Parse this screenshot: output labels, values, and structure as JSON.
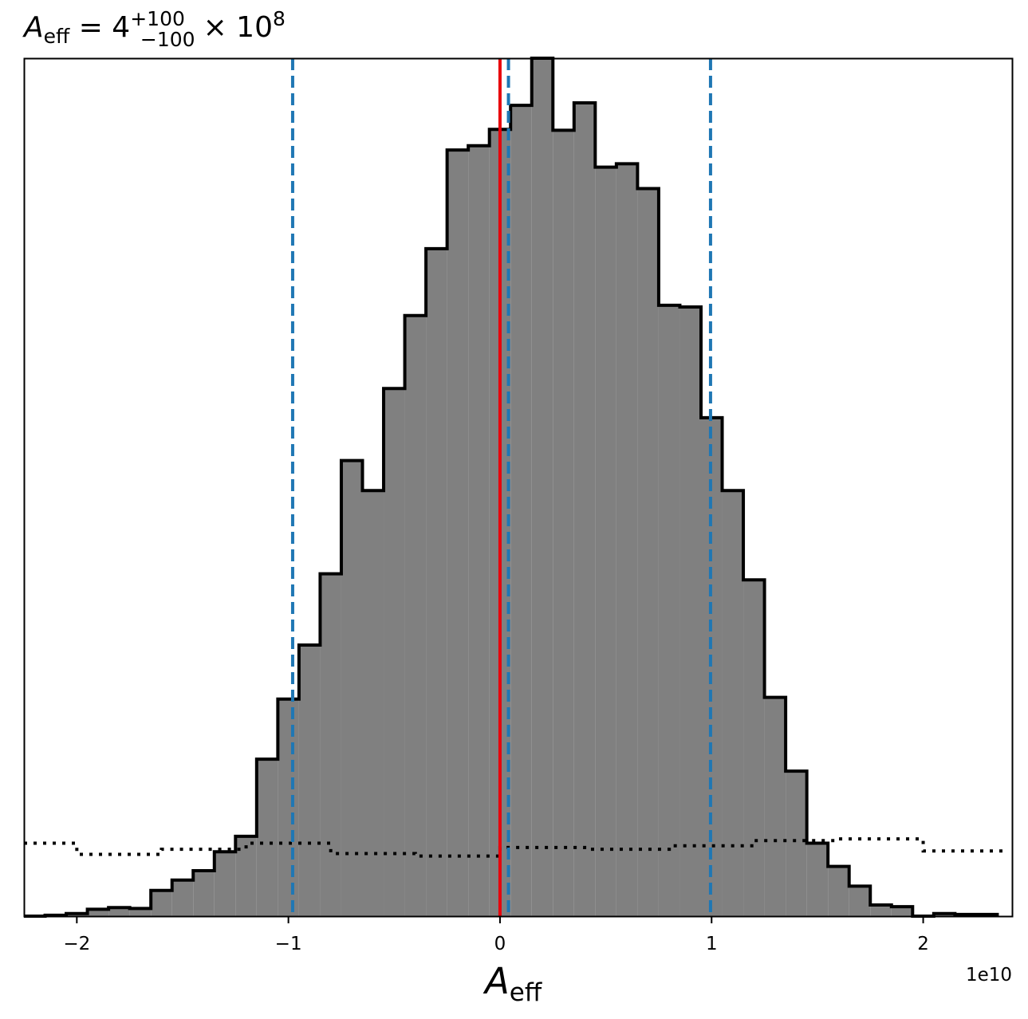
{
  "chart_data": {
    "type": "histogram",
    "title": {
      "symbol": "A",
      "subscript": "eff",
      "equals": " = 4",
      "upper": "+100",
      "lower": "−100",
      "times": "× 10",
      "exp": "8"
    },
    "xlabel": {
      "symbol": "A",
      "subscript": "eff"
    },
    "ylabel": "",
    "x_offset_label": "1e10",
    "x_scale": 10000000000.0,
    "xlim": [
      -2.25,
      2.42
    ],
    "ylim": [
      0,
      1.0
    ],
    "xticks": [
      -2,
      -1,
      0,
      1,
      2
    ],
    "xtick_labels": [
      "−2",
      "−1",
      "0",
      "1",
      "2"
    ],
    "yticks": [],
    "grid": false,
    "histogram": {
      "fill_color": "#808080",
      "edge_color": "#000000",
      "bin_edges": [
        -2.25,
        -2.15,
        -2.05,
        -1.95,
        -1.85,
        -1.75,
        -1.65,
        -1.55,
        -1.45,
        -1.35,
        -1.25,
        -1.15,
        -1.05,
        -0.95,
        -0.85,
        -0.75,
        -0.65,
        -0.55,
        -0.45,
        -0.35,
        -0.25,
        -0.15,
        -0.05,
        0.05,
        0.15,
        0.25,
        0.35,
        0.45,
        0.55,
        0.65,
        0.75,
        0.85,
        0.95,
        1.05,
        1.15,
        1.25,
        1.35,
        1.45,
        1.55,
        1.65,
        1.75,
        1.85,
        1.95,
        2.05,
        2.15,
        2.25,
        2.35
      ],
      "values": [
        0.0,
        0.001,
        0.003,
        0.008,
        0.01,
        0.009,
        0.03,
        0.042,
        0.053,
        0.075,
        0.093,
        0.183,
        0.253,
        0.316,
        0.399,
        0.531,
        0.496,
        0.615,
        0.7,
        0.778,
        0.893,
        0.898,
        0.917,
        0.945,
        1.0,
        0.916,
        0.948,
        0.873,
        0.877,
        0.848,
        0.712,
        0.71,
        0.581,
        0.496,
        0.392,
        0.255,
        0.169,
        0.085,
        0.058,
        0.035,
        0.013,
        0.011,
        0.0,
        0.003,
        0.002,
        0.002
      ]
    },
    "prior": {
      "style": "dotted",
      "color": "#000000",
      "bin_edges": [
        -2.25,
        -2.0,
        -1.6,
        -1.2,
        -0.8,
        -0.4,
        0.0,
        0.4,
        0.8,
        1.2,
        1.6,
        2.0,
        2.4
      ],
      "values": [
        0.085,
        0.072,
        0.078,
        0.085,
        0.073,
        0.07,
        0.08,
        0.078,
        0.082,
        0.088,
        0.09,
        0.076
      ]
    },
    "vlines": [
      {
        "x": 0.0,
        "color": "#e8000b",
        "style": "solid",
        "role": "true-value"
      },
      {
        "x": -0.98,
        "color": "#1f77b4",
        "style": "dashed",
        "role": "lower-bound"
      },
      {
        "x": 0.04,
        "color": "#1f77b4",
        "style": "dashed",
        "role": "median"
      },
      {
        "x": 0.995,
        "color": "#1f77b4",
        "style": "dashed",
        "role": "upper-bound"
      }
    ]
  }
}
